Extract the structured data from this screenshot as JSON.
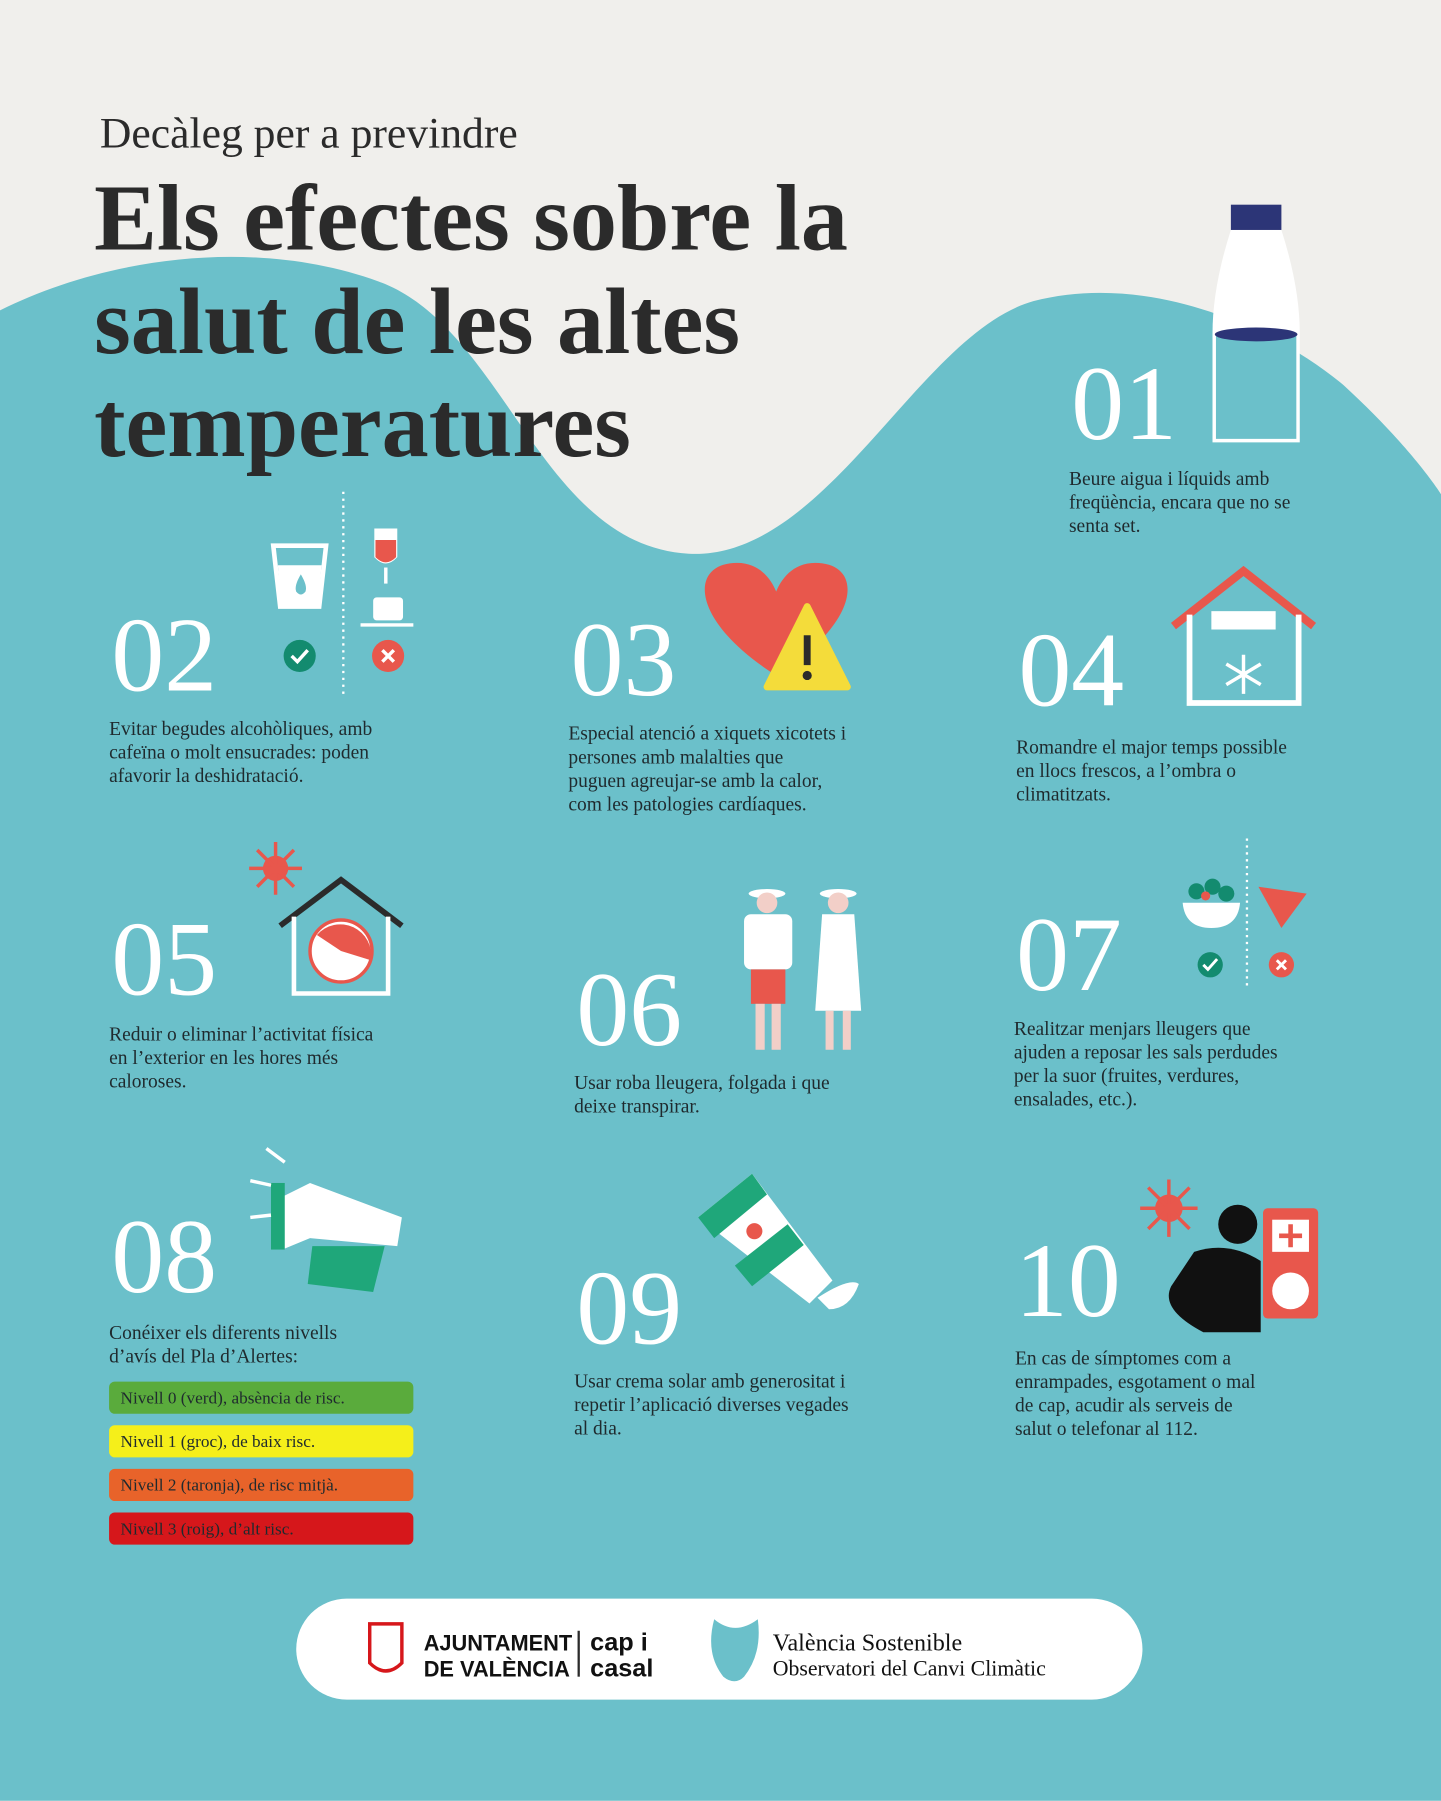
{
  "header": {
    "subtitle": "Decàleg per a previndre",
    "title_lines": [
      "Els efectes sobre la",
      "salut de les altes",
      "temperatures"
    ]
  },
  "items": [
    {
      "number": "01",
      "lines": [
        "Beure aigua i líquids amb",
        "freqüència, encara que no se",
        "senta set."
      ]
    },
    {
      "number": "02",
      "lines": [
        "Evitar begudes alcohòliques, amb",
        "cafeïna o molt ensucrades: poden",
        "afavorir la deshidratació."
      ]
    },
    {
      "number": "03",
      "lines": [
        "Especial atenció a xiquets xicotets i",
        "persones amb malalties que",
        "puguen agreujar-se amb la calor,",
        "com les patologies cardíaques."
      ]
    },
    {
      "number": "04",
      "lines": [
        "Romandre el major temps possible",
        "en llocs frescos, a l’ombra o",
        "climatitzats."
      ]
    },
    {
      "number": "05",
      "lines": [
        "Reduir o eliminar l’activitat física",
        "en l’exterior en les hores més",
        "caloroses."
      ]
    },
    {
      "number": "06",
      "lines": [
        "Usar roba lleugera, folgada i que",
        "deixe transpirar."
      ]
    },
    {
      "number": "07",
      "lines": [
        "Realitzar menjars lleugers que",
        "ajuden a reposar les sals perdudes",
        "per la suor (fruites, verdures,",
        "ensalades, etc.)."
      ]
    },
    {
      "number": "08",
      "lines": [
        "Conéixer els diferents nivells",
        "d’avís del Pla d’Alertes:"
      ]
    },
    {
      "number": "09",
      "lines": [
        "Usar crema solar amb generositat i",
        "repetir l’aplicació diverses vegades",
        "al dia."
      ]
    },
    {
      "number": "10",
      "lines": [
        "En cas de símptomes com a",
        "enrampades, esgotament o mal",
        "de cap, acudir als serveis de",
        "salut o telefonar al 112."
      ]
    }
  ],
  "alert_levels": [
    "Nivell 0 (verd), absència de risc.",
    "Nivell 1 (groc), de baix risc.",
    "Nivell 2 (taronja), de risc mitjà.",
    "Nivell 3 (roig), d’alt risc."
  ],
  "footer": {
    "ajuntament": [
      "AJUNTAMENT",
      "DE VALÈNCIA"
    ],
    "cap_i_casal": [
      "cap i",
      "casal"
    ],
    "sostenible": "València Sostenible",
    "observatori": "Observatori del Canvi Climàtic"
  }
}
